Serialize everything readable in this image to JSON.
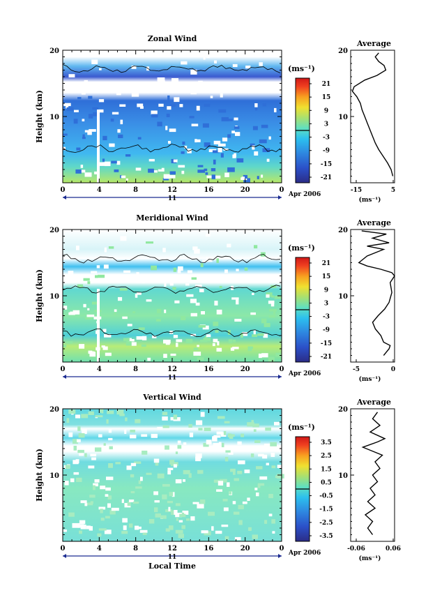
{
  "chart_data": [
    {
      "type": "heatmap",
      "title": "Zonal Wind",
      "ylabel": "Height (km)",
      "x_ticks": [
        "0",
        "4",
        "8",
        "12",
        "16",
        "20",
        "0"
      ],
      "y_ticks": [
        "20",
        "10"
      ],
      "date_label": "11",
      "month_label": "Apr 2006",
      "colorbar_unit": "(ms⁻¹)",
      "colorbar_ticks": [
        "21",
        "15",
        "9",
        "3",
        "-3",
        "-9",
        "-15",
        "-21"
      ],
      "profile": {
        "title": "Average",
        "y_ticks": [
          "20",
          "10"
        ],
        "x_ticks": [
          "-15",
          "5"
        ],
        "xlabel": "(ms⁻¹)",
        "x_range": [
          -20,
          5
        ],
        "points": [
          [
            4.0,
            1
          ],
          [
            3.0,
            2
          ],
          [
            1.0,
            3
          ],
          [
            -1.5,
            4
          ],
          [
            -4.0,
            5
          ],
          [
            -6.0,
            6
          ],
          [
            -7.5,
            7
          ],
          [
            -9.0,
            8
          ],
          [
            -10.5,
            9
          ],
          [
            -12.0,
            10
          ],
          [
            -13.5,
            11
          ],
          [
            -14.5,
            12
          ],
          [
            -16.5,
            13
          ],
          [
            -19.0,
            13.8
          ],
          [
            -18.0,
            14.5
          ],
          [
            -12.0,
            15.5
          ],
          [
            -5.0,
            16.2
          ],
          [
            0.0,
            17
          ],
          [
            -1.0,
            17.7
          ],
          [
            -4.0,
            18.3
          ],
          [
            -6.0,
            19
          ],
          [
            -4.0,
            19.6
          ]
        ]
      }
    },
    {
      "type": "heatmap",
      "title": "Meridional Wind",
      "ylabel": "Height (km)",
      "x_ticks": [
        "0",
        "4",
        "8",
        "12",
        "16",
        "20",
        "0"
      ],
      "y_ticks": [
        "20",
        "10"
      ],
      "date_label": "11",
      "month_label": "Apr 2006",
      "colorbar_unit": "(ms⁻¹)",
      "colorbar_ticks": [
        "21",
        "15",
        "9",
        "3",
        "-3",
        "-9",
        "-15",
        "-21"
      ],
      "profile": {
        "title": "Average",
        "y_ticks": [
          "20",
          "10"
        ],
        "x_ticks": [
          "-5",
          "0"
        ],
        "xlabel": "(ms⁻¹)",
        "x_range": [
          -5,
          3
        ],
        "points": [
          [
            1.0,
            1
          ],
          [
            2.0,
            2
          ],
          [
            2.2,
            2.5
          ],
          [
            1.0,
            3
          ],
          [
            0.5,
            4
          ],
          [
            -0.5,
            5
          ],
          [
            -1.0,
            6
          ],
          [
            0.0,
            7
          ],
          [
            1.2,
            8
          ],
          [
            2.0,
            9
          ],
          [
            2.5,
            10.5
          ],
          [
            2.2,
            12
          ],
          [
            3.0,
            13
          ],
          [
            2.5,
            13.5
          ],
          [
            0.5,
            14
          ],
          [
            -2.0,
            14.5
          ],
          [
            -3.5,
            15
          ],
          [
            -2.0,
            16
          ],
          [
            1.0,
            17
          ],
          [
            -2.0,
            17.5
          ],
          [
            2.0,
            18
          ],
          [
            -1.0,
            18.7
          ],
          [
            1.5,
            19.3
          ],
          [
            -3.0,
            19.8
          ]
        ]
      }
    },
    {
      "type": "heatmap",
      "title": "Vertical Wind",
      "ylabel": "Height (km)",
      "xlabel": "Local Time",
      "x_ticks": [
        "0",
        "4",
        "8",
        "12",
        "16",
        "20",
        "0"
      ],
      "y_ticks": [
        "20",
        "10"
      ],
      "date_label": "11",
      "month_label": "Apr 2006",
      "colorbar_unit": "(ms⁻¹)",
      "colorbar_ticks": [
        "3.5",
        "2.5",
        "1.5",
        "0.5",
        "-0.5",
        "-1.5",
        "-2.5",
        "-3.5"
      ],
      "profile": {
        "title": "Average",
        "y_ticks": [
          "20",
          "10"
        ],
        "x_ticks": [
          "-0.06",
          "0.06"
        ],
        "xlabel": "(ms⁻¹)",
        "x_range": [
          -0.09,
          0.09
        ],
        "points": [
          [
            0.0,
            1
          ],
          [
            -0.02,
            2
          ],
          [
            0.0,
            3
          ],
          [
            -0.03,
            4
          ],
          [
            0.01,
            5
          ],
          [
            -0.02,
            6
          ],
          [
            0.01,
            7
          ],
          [
            -0.01,
            8
          ],
          [
            0.02,
            9
          ],
          [
            0.0,
            10
          ],
          [
            0.03,
            11
          ],
          [
            0.01,
            12
          ],
          [
            0.04,
            13
          ],
          [
            -0.04,
            14.2
          ],
          [
            0.02,
            15
          ],
          [
            0.05,
            15.5
          ],
          [
            -0.01,
            16.5
          ],
          [
            0.03,
            17.5
          ],
          [
            0.0,
            18.5
          ],
          [
            0.02,
            19.5
          ]
        ]
      }
    }
  ],
  "xlabel_bottom": "Local Time"
}
